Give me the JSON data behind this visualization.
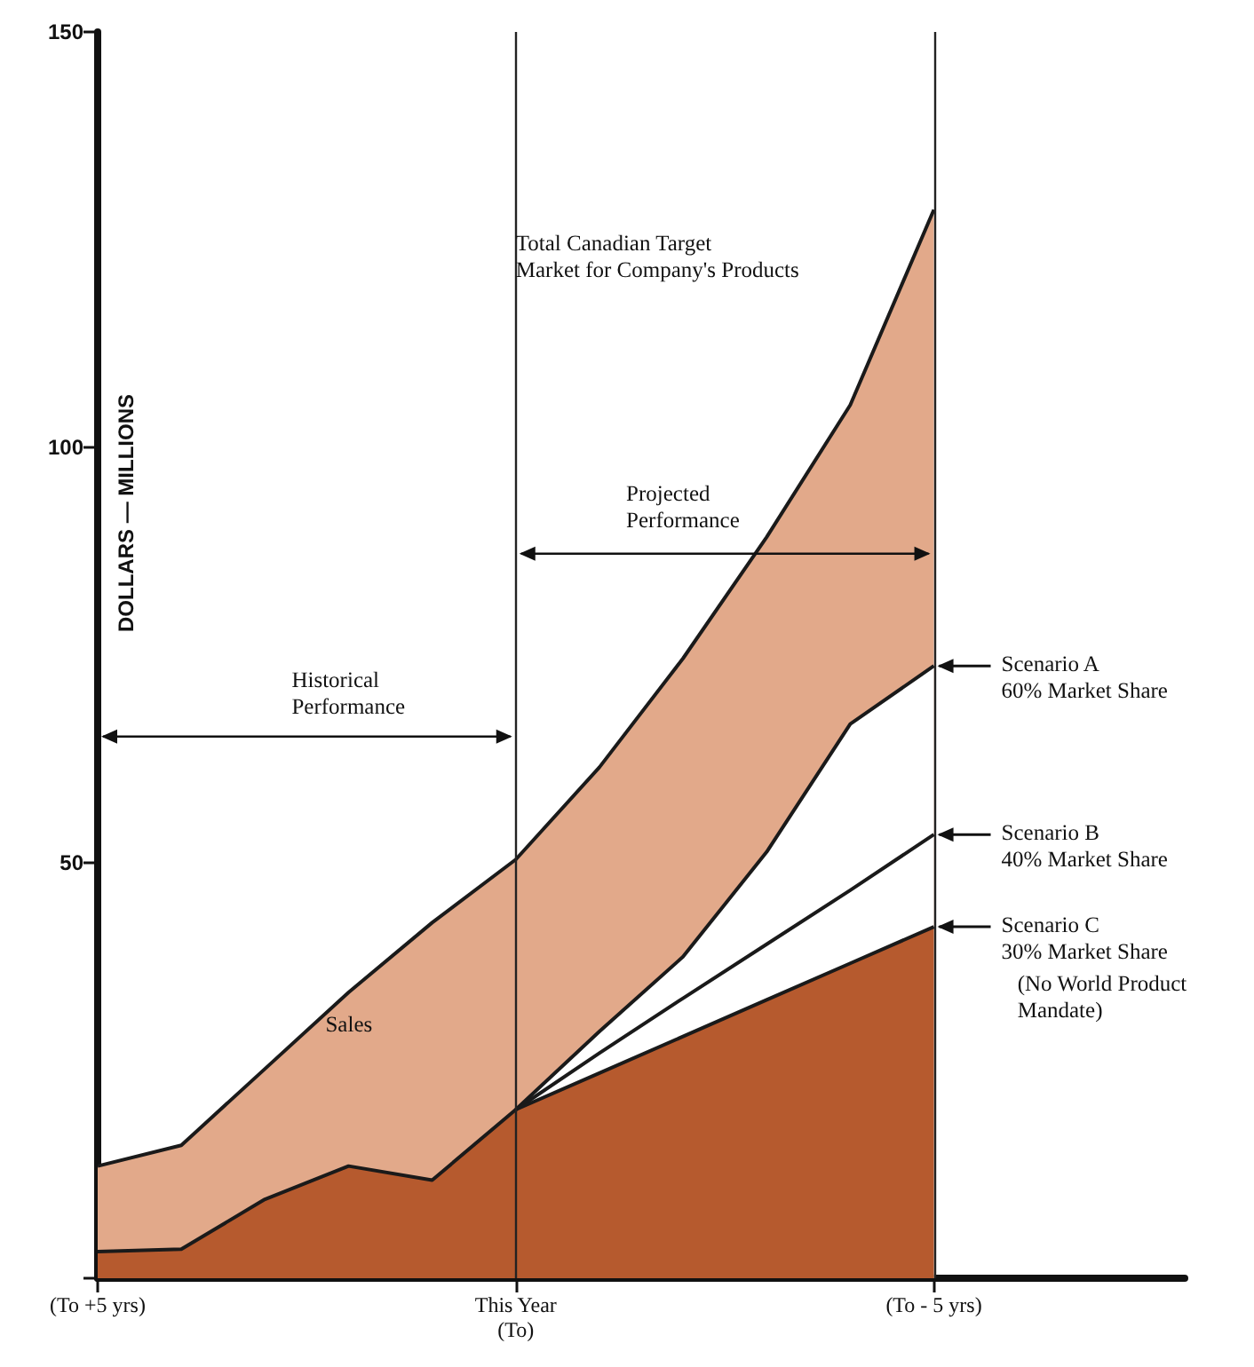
{
  "chart_data": {
    "type": "area",
    "ylabel": "DOLLARS — MILLIONS",
    "categories": [
      "(To +5 yrs)",
      null,
      null,
      null,
      null,
      "This Year\n(To)",
      null,
      null,
      null,
      null,
      "(To - 5 yrs)",
      null,
      null,
      null
    ],
    "ylim": [
      0,
      150
    ],
    "yticks": [
      {
        "value": 0,
        "label": null
      },
      50,
      100,
      150
    ],
    "grid": false,
    "series": [
      {
        "color": "#e2a98a",
        "values": [
          13.5,
          16,
          25.2,
          34.4,
          42.8,
          50.4,
          61.5,
          74.6,
          89.2,
          105.1,
          128.6,
          null,
          null,
          null
        ]
      },
      {
        "color": "#ffffff",
        "values": [
          null,
          null,
          null,
          null,
          null,
          20.3,
          29.7,
          38.7,
          51.3,
          66.7,
          73.7,
          null,
          null,
          null
        ]
      },
      {
        "type": "line",
        "color": "#1a1a1a",
        "values": [
          null,
          null,
          null,
          null,
          null,
          20.3,
          27.1,
          33.7,
          40.2,
          46.7,
          53.4,
          null,
          null,
          null
        ]
      },
      {
        "color": "#b65a2e",
        "values": [
          3.2,
          3.5,
          9.5,
          13.5,
          11.8,
          20.3,
          24.7,
          29.1,
          33.5,
          37.9,
          42.3,
          null,
          null,
          null
        ]
      }
    ],
    "ref_lines": [
      {
        "axis": "x",
        "value": "This Year\n(To)",
        "color": "#222222"
      },
      {
        "axis": "x",
        "value": "(To - 5 yrs)",
        "color": "#222222"
      }
    ],
    "annotations": [
      "Total Canadian Target\nMarket for Company's Products",
      "Historical\nPerformance",
      "Projected\nPerformance",
      "Scenario A\n60% Market Share",
      "Scenario B\n40% Market Share",
      "Scenario C\n30% Market Share",
      "(No World Product\nMandate)",
      "Sales"
    ]
  }
}
